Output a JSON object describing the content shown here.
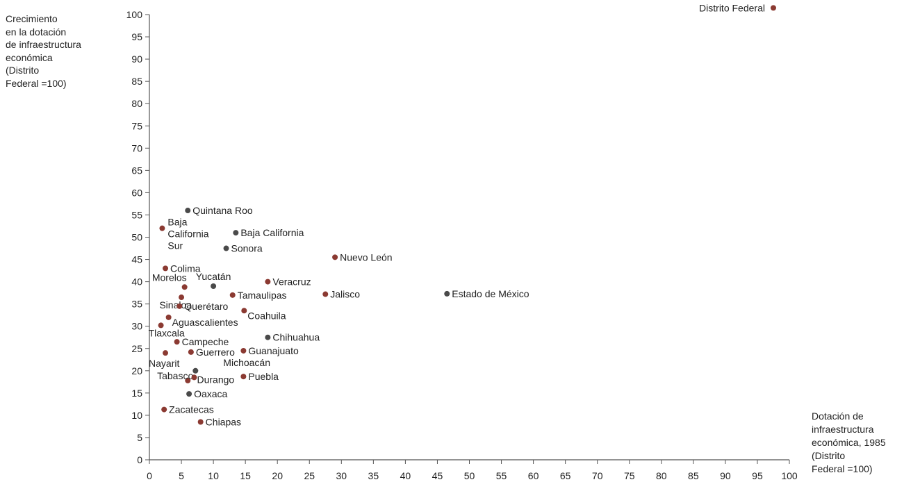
{
  "chart_data": {
    "type": "scatter",
    "title": "",
    "ylabel_lines": [
      "Crecimiento",
      "en la dotación",
      "de infraestructura",
      "económica",
      "(Distrito",
      "Federal =100)"
    ],
    "xlabel_lines": [
      "Dotación de",
      "infraestructura",
      "económica, 1985",
      "(Distrito",
      "Federal =100)"
    ],
    "xlim": [
      0,
      100
    ],
    "ylim": [
      0,
      100
    ],
    "xticks": [
      0,
      5,
      10,
      15,
      20,
      25,
      30,
      35,
      40,
      45,
      50,
      55,
      60,
      65,
      70,
      75,
      80,
      85,
      90,
      95,
      100
    ],
    "yticks": [
      0,
      5,
      10,
      15,
      20,
      25,
      30,
      35,
      40,
      45,
      50,
      55,
      60,
      65,
      70,
      75,
      80,
      85,
      90,
      95,
      100
    ],
    "grid": false,
    "colors": {
      "red": "#8b3a32",
      "gray": "#4a4a4a"
    },
    "points": [
      {
        "label": "Distrito Federal",
        "label_lines": [
          "Distrito Federal"
        ],
        "x": 97.5,
        "y": 101.5,
        "color": "red",
        "pos": "left"
      },
      {
        "label": "Quintana Roo",
        "label_lines": [
          "Quintana Roo"
        ],
        "x": 6,
        "y": 56,
        "color": "gray",
        "pos": "right"
      },
      {
        "label": "Baja California Sur",
        "label_lines": [
          "Baja",
          "California",
          "Sur"
        ],
        "x": 2,
        "y": 52,
        "color": "red",
        "pos": "right-stack"
      },
      {
        "label": "Baja California",
        "label_lines": [
          "Baja California"
        ],
        "x": 13.5,
        "y": 51,
        "color": "gray",
        "pos": "right"
      },
      {
        "label": "Sonora",
        "label_lines": [
          "Sonora"
        ],
        "x": 12,
        "y": 47.5,
        "color": "gray",
        "pos": "right"
      },
      {
        "label": "Nuevo León",
        "label_lines": [
          "Nuevo León"
        ],
        "x": 29,
        "y": 45.5,
        "color": "red",
        "pos": "right"
      },
      {
        "label": "Colima",
        "label_lines": [
          "Colima"
        ],
        "x": 2.5,
        "y": 43,
        "color": "red",
        "pos": "right"
      },
      {
        "label": "Morelos",
        "label_lines": [
          "Morelos"
        ],
        "x": 5.5,
        "y": 38.8,
        "color": "red",
        "pos": "above-left"
      },
      {
        "label": "Yucatán",
        "label_lines": [
          "Yucatán"
        ],
        "x": 10,
        "y": 39,
        "color": "gray",
        "pos": "above"
      },
      {
        "label": "Veracruz",
        "label_lines": [
          "Veracruz"
        ],
        "x": 18.5,
        "y": 40,
        "color": "red",
        "pos": "right"
      },
      {
        "label": "Jalisco",
        "label_lines": [
          "Jalisco"
        ],
        "x": 27.5,
        "y": 37.2,
        "color": "red",
        "pos": "right"
      },
      {
        "label": "Estado de México",
        "label_lines": [
          "Estado de México"
        ],
        "x": 46.5,
        "y": 37.3,
        "color": "gray",
        "pos": "right"
      },
      {
        "label": "Tamaulipas",
        "label_lines": [
          "Tamaulipas"
        ],
        "x": 13,
        "y": 37,
        "color": "red",
        "pos": "right"
      },
      {
        "label": "Sinaloa",
        "label_lines": [
          "Sinaloa"
        ],
        "x": 5,
        "y": 36.5,
        "color": "red",
        "pos": "left-only"
      },
      {
        "label": "Querétaro",
        "label_lines": [
          "Querétaro"
        ],
        "x": 4.7,
        "y": 34.5,
        "color": "red",
        "pos": "right"
      },
      {
        "label": "Coahuila",
        "label_lines": [
          "Coahuila"
        ],
        "x": 14.8,
        "y": 33.5,
        "color": "red",
        "pos": "right-below"
      },
      {
        "label": "Aguascalientes",
        "label_lines": [
          "Aguascalientes"
        ],
        "x": 3,
        "y": 32,
        "color": "red",
        "pos": "right-below"
      },
      {
        "label": "Tlaxcala",
        "label_lines": [
          "Tlaxcala"
        ],
        "x": 1.8,
        "y": 30.2,
        "color": "red",
        "pos": "below"
      },
      {
        "label": "Chihuahua",
        "label_lines": [
          "Chihuahua"
        ],
        "x": 18.5,
        "y": 27.5,
        "color": "gray",
        "pos": "right"
      },
      {
        "label": "Campeche",
        "label_lines": [
          "Campeche"
        ],
        "x": 4.3,
        "y": 26.5,
        "color": "red",
        "pos": "right"
      },
      {
        "label": "Guanajuato",
        "label_lines": [
          "Guanajuato"
        ],
        "x": 14.7,
        "y": 24.5,
        "color": "red",
        "pos": "right"
      },
      {
        "label": "Guerrero",
        "label_lines": [
          "Guerrero"
        ],
        "x": 6.5,
        "y": 24.2,
        "color": "red",
        "pos": "right"
      },
      {
        "label": "Nayarit",
        "label_lines": [
          "Nayarit"
        ],
        "x": 2.5,
        "y": 24,
        "color": "red",
        "pos": "below-left"
      },
      {
        "label": "Michoacán",
        "label_lines": [
          "Michoacán"
        ],
        "x": 7.2,
        "y": 20,
        "color": "gray",
        "pos": "far-right-above"
      },
      {
        "label": "Tabasco",
        "label_lines": [
          "Tabasco"
        ],
        "x": 6,
        "y": 17.8,
        "color": "red",
        "pos": "left-above"
      },
      {
        "label": "Durango",
        "label_lines": [
          "Durango"
        ],
        "x": 7,
        "y": 18.5,
        "color": "red",
        "pos": "right-below-small"
      },
      {
        "label": "Puebla",
        "label_lines": [
          "Puebla"
        ],
        "x": 14.7,
        "y": 18.7,
        "color": "red",
        "pos": "right"
      },
      {
        "label": "Oaxaca",
        "label_lines": [
          "Oaxaca"
        ],
        "x": 6.2,
        "y": 14.8,
        "color": "gray",
        "pos": "right"
      },
      {
        "label": "Zacatecas",
        "label_lines": [
          "Zacatecas"
        ],
        "x": 2.3,
        "y": 11.3,
        "color": "red",
        "pos": "right"
      },
      {
        "label": "Chiapas",
        "label_lines": [
          "Chiapas"
        ],
        "x": 8,
        "y": 8.5,
        "color": "red",
        "pos": "right"
      }
    ]
  }
}
